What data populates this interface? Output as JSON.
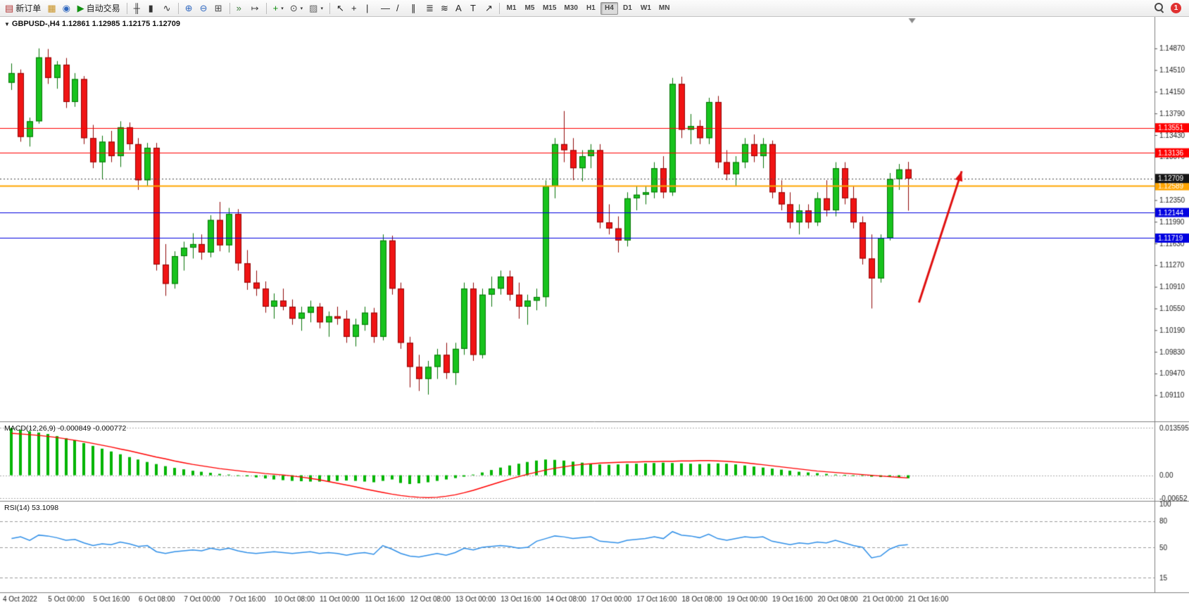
{
  "toolbar": {
    "notification_count": "1",
    "active_timeframe": "H4",
    "timeframes": [
      "M1",
      "M5",
      "M15",
      "M30",
      "H1",
      "H4",
      "D1",
      "W1",
      "MN"
    ],
    "groups": [
      [
        {
          "name": "new-order",
          "glyph": "▤",
          "color": "#b03030",
          "label": "新订单"
        },
        {
          "name": "chart-window",
          "glyph": "▦",
          "color": "#c89020"
        },
        {
          "name": "market-watch",
          "glyph": "◉",
          "color": "#3068c0"
        },
        {
          "name": "autotrading",
          "glyph": "▶",
          "color": "#109010",
          "label": "自动交易"
        }
      ],
      [
        {
          "name": "bars-chart",
          "glyph": "╫",
          "color": "#333"
        },
        {
          "name": "candlestick-chart",
          "glyph": "▮",
          "color": "#333"
        },
        {
          "name": "line-chart",
          "glyph": "∿",
          "color": "#333"
        }
      ],
      [
        {
          "name": "zoom-in",
          "glyph": "⊕",
          "color": "#3068c0"
        },
        {
          "name": "zoom-out",
          "glyph": "⊖",
          "color": "#3068c0"
        },
        {
          "name": "tile-windows",
          "glyph": "⊞",
          "color": "#444"
        }
      ],
      [
        {
          "name": "auto-scroll",
          "glyph": "»",
          "color": "#3a7a3a"
        },
        {
          "name": "chart-shift",
          "glyph": "↦",
          "color": "#444"
        }
      ],
      [
        {
          "name": "add-indicator",
          "glyph": "+",
          "color": "#0a8a0a",
          "dropdown": true
        },
        {
          "name": "period-selector",
          "glyph": "⊙",
          "color": "#444",
          "dropdown": true
        },
        {
          "name": "chart-template",
          "glyph": "▨",
          "color": "#666",
          "dropdown": true
        }
      ],
      [
        {
          "name": "cursor-tool",
          "glyph": "↖",
          "color": "#222"
        },
        {
          "name": "crosshair-tool",
          "glyph": "+",
          "color": "#222"
        },
        {
          "name": "vertical-line-tool",
          "glyph": "|",
          "color": "#222"
        },
        {
          "name": "horizontal-line-tool",
          "glyph": "—",
          "color": "#222"
        },
        {
          "name": "trendline-tool",
          "glyph": "/",
          "color": "#222"
        },
        {
          "name": "channel-tool",
          "glyph": "∥",
          "color": "#222"
        },
        {
          "name": "fibonacci-tool",
          "glyph": "≣",
          "color": "#222"
        },
        {
          "name": "grid-tool",
          "glyph": "≋",
          "color": "#222"
        },
        {
          "name": "text-tool",
          "glyph": "A",
          "color": "#222"
        },
        {
          "name": "label-tool",
          "glyph": "T",
          "color": "#222"
        },
        {
          "name": "arrows-tool",
          "glyph": "↗",
          "color": "#222"
        }
      ]
    ]
  },
  "chart_data": {
    "type": "candlestick",
    "symbol": "GBPUSD-",
    "timeframe": "H4",
    "title": "GBPUSD-,H4 1.12861 1.12985 1.12175 1.12709",
    "last_bar": {
      "open": 1.12861,
      "high": 1.12985,
      "low": 1.12175,
      "close": 1.12709
    },
    "current_price": {
      "value": 1.12709,
      "badge": "1.12709",
      "color": "#151515"
    },
    "price_axis_ticks": [
      "1.14870",
      "1.14510",
      "1.14150",
      "1.13790",
      "1.13430",
      "1.13070",
      "1.12350",
      "1.11990",
      "1.11630",
      "1.11270",
      "1.10910",
      "1.10550",
      "1.10190",
      "1.09830",
      "1.09470",
      "1.09110"
    ],
    "x_labels": [
      "4 Oct 2022",
      "5 Oct 00:00",
      "5 Oct 16:00",
      "6 Oct 08:00",
      "7 Oct 00:00",
      "7 Oct 16:00",
      "10 Oct 08:00",
      "11 Oct 00:00",
      "11 Oct 16:00",
      "12 Oct 08:00",
      "13 Oct 00:00",
      "13 Oct 16:00",
      "14 Oct 08:00",
      "17 Oct 00:00",
      "17 Oct 16:00",
      "18 Oct 08:00",
      "19 Oct 00:00",
      "19 Oct 16:00",
      "20 Oct 08:00",
      "21 Oct 00:00",
      "21 Oct 16:00"
    ],
    "levels": [
      {
        "price": 1.13551,
        "badge": "1.13551",
        "color": "#FF0000",
        "width": 1
      },
      {
        "price": 1.13136,
        "badge": "1.13136",
        "color": "#FF0000",
        "width": 1
      },
      {
        "price": 1.12589,
        "badge": "1.12589",
        "color": "#FFA500",
        "width": 2
      },
      {
        "price": 1.12144,
        "badge": "1.12144",
        "color": "#0000E0",
        "width": 1
      },
      {
        "price": 1.11719,
        "badge": "1.11719",
        "color": "#0000E0",
        "width": 1
      }
    ],
    "annotations": {
      "arrow": {
        "x1_frac": 0.796,
        "y1_price": 1.1065,
        "x2_frac": 0.833,
        "y2_price": 1.1283,
        "color": "#E01010"
      },
      "shift_marker_frac": 0.79
    },
    "candles": [
      [
        1.143,
        1.1462,
        1.1418,
        1.1446
      ],
      [
        1.1446,
        1.1452,
        1.1332,
        1.134
      ],
      [
        1.134,
        1.1372,
        1.1324,
        1.1366
      ],
      [
        1.1366,
        1.1487,
        1.1362,
        1.1472
      ],
      [
        1.1472,
        1.1486,
        1.1428,
        1.1438
      ],
      [
        1.1438,
        1.1466,
        1.142,
        1.146
      ],
      [
        1.146,
        1.1471,
        1.1388,
        1.1398
      ],
      [
        1.1398,
        1.1446,
        1.139,
        1.1436
      ],
      [
        1.1436,
        1.1441,
        1.1328,
        1.1338
      ],
      [
        1.1338,
        1.136,
        1.1288,
        1.1298
      ],
      [
        1.1298,
        1.1342,
        1.127,
        1.1332
      ],
      [
        1.1332,
        1.135,
        1.1298,
        1.1308
      ],
      [
        1.1308,
        1.1366,
        1.129,
        1.1356
      ],
      [
        1.1356,
        1.1364,
        1.1318,
        1.1328
      ],
      [
        1.1328,
        1.1338,
        1.1252,
        1.1268
      ],
      [
        1.1268,
        1.133,
        1.1258,
        1.1322
      ],
      [
        1.1322,
        1.133,
        1.1118,
        1.1128
      ],
      [
        1.1128,
        1.1162,
        1.1076,
        1.1096
      ],
      [
        1.1096,
        1.115,
        1.1088,
        1.1142
      ],
      [
        1.1142,
        1.1166,
        1.1118,
        1.1156
      ],
      [
        1.1156,
        1.118,
        1.1138,
        1.1162
      ],
      [
        1.1162,
        1.1178,
        1.1136,
        1.1148
      ],
      [
        1.1148,
        1.121,
        1.114,
        1.1202
      ],
      [
        1.1202,
        1.1232,
        1.115,
        1.116
      ],
      [
        1.116,
        1.1222,
        1.1148,
        1.1212
      ],
      [
        1.1212,
        1.122,
        1.1118,
        1.113
      ],
      [
        1.113,
        1.1152,
        1.1086,
        1.1098
      ],
      [
        1.1098,
        1.1118,
        1.1076,
        1.1088
      ],
      [
        1.1088,
        1.11,
        1.1048,
        1.1058
      ],
      [
        1.1058,
        1.108,
        1.1038,
        1.1068
      ],
      [
        1.1068,
        1.1088,
        1.1052,
        1.1058
      ],
      [
        1.1058,
        1.107,
        1.1028,
        1.1038
      ],
      [
        1.1038,
        1.1058,
        1.1018,
        1.1048
      ],
      [
        1.1048,
        1.1068,
        1.1032,
        1.1058
      ],
      [
        1.1058,
        1.1064,
        1.1022,
        1.1032
      ],
      [
        1.1032,
        1.105,
        1.1008,
        1.1042
      ],
      [
        1.1042,
        1.1058,
        1.1028,
        1.1038
      ],
      [
        1.1038,
        1.1052,
        1.0998,
        1.1008
      ],
      [
        1.1008,
        1.1038,
        1.0992,
        1.1028
      ],
      [
        1.1028,
        1.1058,
        1.1018,
        1.1048
      ],
      [
        1.1048,
        1.1056,
        1.0998,
        1.1008
      ],
      [
        1.1008,
        1.1178,
        1.1002,
        1.1168
      ],
      [
        1.1168,
        1.1176,
        1.1078,
        1.1088
      ],
      [
        1.1088,
        1.1098,
        1.0988,
        1.0998
      ],
      [
        1.0998,
        1.1008,
        1.0924,
        1.0958
      ],
      [
        1.0958,
        1.0978,
        1.0918,
        1.0938
      ],
      [
        1.0938,
        1.0968,
        1.0912,
        1.0958
      ],
      [
        1.0958,
        1.0988,
        1.0938,
        1.0978
      ],
      [
        1.0978,
        1.0998,
        1.0938,
        1.0948
      ],
      [
        1.0948,
        1.0998,
        1.0928,
        1.0988
      ],
      [
        1.0988,
        1.1098,
        1.0978,
        1.1088
      ],
      [
        1.1088,
        1.1098,
        1.0968,
        1.0978
      ],
      [
        1.0978,
        1.1088,
        1.0972,
        1.1078
      ],
      [
        1.1078,
        1.1108,
        1.1058,
        1.1088
      ],
      [
        1.1088,
        1.1118,
        1.1078,
        1.1108
      ],
      [
        1.1108,
        1.1118,
        1.1068,
        1.1078
      ],
      [
        1.1078,
        1.1098,
        1.1038,
        1.1058
      ],
      [
        1.1058,
        1.1078,
        1.1028,
        1.1068
      ],
      [
        1.1068,
        1.1088,
        1.1052,
        1.1074
      ],
      [
        1.1074,
        1.1268,
        1.1058,
        1.1258
      ],
      [
        1.1258,
        1.1338,
        1.1238,
        1.1328
      ],
      [
        1.1328,
        1.1383,
        1.1298,
        1.1318
      ],
      [
        1.1318,
        1.1338,
        1.1268,
        1.1288
      ],
      [
        1.1288,
        1.1318,
        1.1266,
        1.1308
      ],
      [
        1.1308,
        1.1328,
        1.1288,
        1.1318
      ],
      [
        1.1318,
        1.1328,
        1.1188,
        1.1198
      ],
      [
        1.1198,
        1.1228,
        1.1178,
        1.1188
      ],
      [
        1.1188,
        1.1208,
        1.1148,
        1.1168
      ],
      [
        1.1168,
        1.1248,
        1.1158,
        1.1238
      ],
      [
        1.1238,
        1.1258,
        1.1218,
        1.1244
      ],
      [
        1.1244,
        1.1258,
        1.1228,
        1.1248
      ],
      [
        1.1248,
        1.1298,
        1.1238,
        1.1288
      ],
      [
        1.1288,
        1.1308,
        1.1238,
        1.1248
      ],
      [
        1.1248,
        1.1438,
        1.1242,
        1.1428
      ],
      [
        1.1428,
        1.144,
        1.1338,
        1.1352
      ],
      [
        1.1352,
        1.1378,
        1.1328,
        1.1358
      ],
      [
        1.1358,
        1.1368,
        1.1328,
        1.1338
      ],
      [
        1.1338,
        1.1405,
        1.1328,
        1.1398
      ],
      [
        1.1398,
        1.1408,
        1.1288,
        1.1298
      ],
      [
        1.1298,
        1.1318,
        1.1268,
        1.1278
      ],
      [
        1.1278,
        1.1308,
        1.1258,
        1.1298
      ],
      [
        1.1298,
        1.1338,
        1.1288,
        1.1328
      ],
      [
        1.1328,
        1.1344,
        1.1298,
        1.1308
      ],
      [
        1.1308,
        1.1338,
        1.1288,
        1.1328
      ],
      [
        1.1328,
        1.1334,
        1.1238,
        1.1248
      ],
      [
        1.1248,
        1.1268,
        1.1218,
        1.1228
      ],
      [
        1.1228,
        1.1248,
        1.1188,
        1.1198
      ],
      [
        1.1198,
        1.1228,
        1.1178,
        1.1218
      ],
      [
        1.1218,
        1.1228,
        1.1188,
        1.1198
      ],
      [
        1.1198,
        1.1248,
        1.1192,
        1.1238
      ],
      [
        1.1238,
        1.1268,
        1.1208,
        1.1218
      ],
      [
        1.1218,
        1.1298,
        1.1208,
        1.1288
      ],
      [
        1.1288,
        1.1298,
        1.1228,
        1.1238
      ],
      [
        1.1238,
        1.1258,
        1.1188,
        1.1198
      ],
      [
        1.1198,
        1.1208,
        1.1128,
        1.1138
      ],
      [
        1.1138,
        1.1178,
        1.1055,
        1.1105
      ],
      [
        1.1105,
        1.1178,
        1.1098,
        1.1172
      ],
      [
        1.1172,
        1.128,
        1.1168,
        1.127
      ],
      [
        1.127,
        1.1295,
        1.1252,
        1.1286
      ],
      [
        1.12861,
        1.12985,
        1.12175,
        1.12709
      ]
    ],
    "macd": {
      "label": "MACD(12,26,9) -0.000849 -0.000772",
      "axis_labels": [
        "0.013595",
        "0.00",
        "-0.00652"
      ],
      "axis_values": [
        0.013595,
        0,
        -0.00652
      ],
      "histogram": [
        0.0135,
        0.013,
        0.0126,
        0.0122,
        0.0118,
        0.0112,
        0.0106,
        0.01,
        0.0092,
        0.0084,
        0.0076,
        0.0068,
        0.006,
        0.0052,
        0.0045,
        0.0038,
        0.0032,
        0.0026,
        0.0021,
        0.0017,
        0.0013,
        0.001,
        0.0007,
        0.0004,
        0.0002,
        0.0,
        -0.0003,
        -0.0006,
        -0.0009,
        -0.0012,
        -0.0014,
        -0.0016,
        -0.0017,
        -0.0018,
        -0.0018,
        -0.0017,
        -0.0016,
        -0.0015,
        -0.0016,
        -0.0018,
        -0.002,
        -0.0016,
        -0.0012,
        -0.0022,
        -0.0025,
        -0.0023,
        -0.002,
        -0.0016,
        -0.0012,
        -0.0008,
        -0.0004,
        0.0002,
        0.0008,
        0.0015,
        0.0022,
        0.0028,
        0.0033,
        0.0038,
        0.0042,
        0.0045,
        0.0044,
        0.0042,
        0.0039,
        0.0036,
        0.0033,
        0.0031,
        0.003,
        0.0031,
        0.0032,
        0.0033,
        0.0034,
        0.0035,
        0.0036,
        0.0035,
        0.0034,
        0.0033,
        0.0032,
        0.0033,
        0.0034,
        0.0033,
        0.0031,
        0.0028,
        0.0025,
        0.0022,
        0.0019,
        0.0016,
        0.0013,
        0.001,
        0.0008,
        0.0006,
        0.0004,
        0.0002,
        0.0001,
        0.0,
        -0.0002,
        -0.0004,
        -0.0005,
        -0.0003,
        -0.0006,
        -0.000849
      ],
      "signal": [
        0.012,
        0.0118,
        0.0116,
        0.0114,
        0.0111,
        0.0108,
        0.0104,
        0.01,
        0.0096,
        0.0091,
        0.0086,
        0.0081,
        0.0075,
        0.007,
        0.0064,
        0.0058,
        0.0052,
        0.0047,
        0.0041,
        0.0036,
        0.0031,
        0.0027,
        0.0023,
        0.0019,
        0.0016,
        0.0013,
        0.001,
        0.0008,
        0.0005,
        0.0003,
        0.0001,
        -0.0002,
        -0.0005,
        -0.0009,
        -0.0013,
        -0.0018,
        -0.0023,
        -0.0028,
        -0.0033,
        -0.0039,
        -0.0044,
        -0.0049,
        -0.0054,
        -0.0058,
        -0.0061,
        -0.0063,
        -0.0064,
        -0.0063,
        -0.006,
        -0.0056,
        -0.005,
        -0.0043,
        -0.0035,
        -0.0027,
        -0.0019,
        -0.0011,
        -0.0004,
        0.0003,
        0.0009,
        0.0015,
        0.002,
        0.0024,
        0.0028,
        0.0031,
        0.0033,
        0.0035,
        0.0036,
        0.0037,
        0.0038,
        0.0038,
        0.0039,
        0.0039,
        0.004,
        0.004,
        0.0041,
        0.0041,
        0.0042,
        0.0042,
        0.0041,
        0.004,
        0.0038,
        0.0036,
        0.0033,
        0.003,
        0.0027,
        0.0024,
        0.0021,
        0.0018,
        0.0015,
        0.0012,
        0.001,
        0.0008,
        0.0006,
        0.0004,
        0.0002,
        0.0,
        -0.0002,
        -0.0004,
        -0.0006,
        -0.000772
      ]
    },
    "rsi": {
      "label": "RSI(14) 53.1098",
      "axis_labels": [
        "100",
        "80",
        "50",
        "15"
      ],
      "axis_values": [
        100,
        80,
        50,
        15
      ],
      "ref_lines": [
        80,
        50,
        15
      ],
      "values": [
        60,
        62,
        58,
        64,
        63,
        61,
        58,
        59,
        55,
        52,
        54,
        53,
        56,
        54,
        51,
        52,
        45,
        43,
        45,
        46,
        47,
        46,
        49,
        47,
        49,
        46,
        44,
        43,
        44,
        45,
        44,
        43,
        44,
        45,
        43,
        44,
        43,
        41,
        43,
        44,
        42,
        52,
        48,
        43,
        40,
        39,
        41,
        43,
        41,
        44,
        49,
        47,
        50,
        51,
        52,
        51,
        49,
        50,
        57,
        60,
        63,
        62,
        60,
        61,
        62,
        57,
        56,
        55,
        58,
        59,
        60,
        62,
        60,
        68,
        64,
        63,
        61,
        65,
        60,
        58,
        60,
        62,
        61,
        62,
        57,
        55,
        53,
        55,
        54,
        56,
        55,
        58,
        55,
        52,
        50,
        38,
        40,
        48,
        52,
        53.1
      ]
    },
    "colors": {
      "bull_fill": "#17C31D",
      "bull_border": "#077307",
      "bear_fill": "#F01414",
      "bear_border": "#8F0606",
      "macd_hist": "#00B400",
      "macd_signal": "#FF0000",
      "rsi_line": "#2F8FE8"
    }
  }
}
